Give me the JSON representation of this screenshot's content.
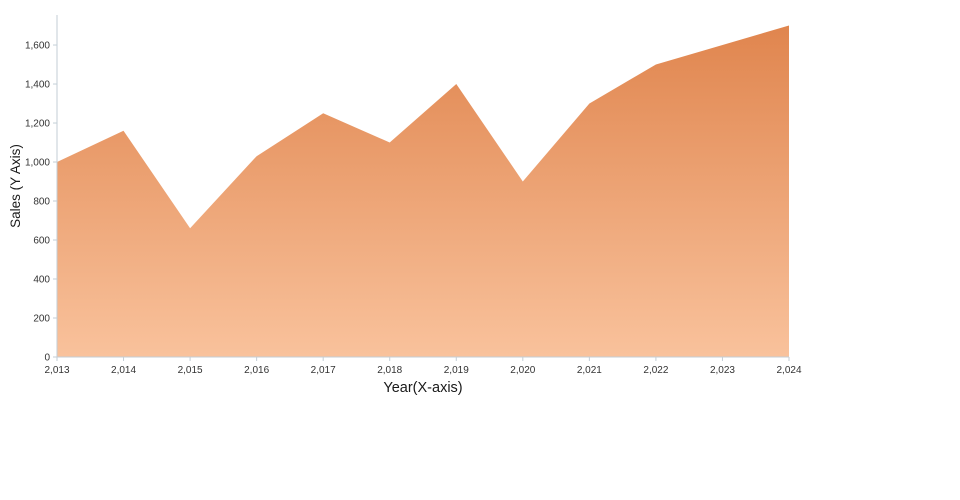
{
  "chart_data": {
    "type": "area",
    "title": "",
    "xlabel": "Year(X-axis)",
    "ylabel": "Sales (Y Axis)",
    "categories": [
      2013,
      2014,
      2015,
      2016,
      2017,
      2018,
      2019,
      2020,
      2021,
      2022,
      2023,
      2024
    ],
    "x_tick_labels": [
      "2,013",
      "2,014",
      "2,015",
      "2,016",
      "2,017",
      "2,018",
      "2,019",
      "2,020",
      "2,021",
      "2,022",
      "2,023",
      "2,024"
    ],
    "values": [
      1000,
      1160,
      660,
      1030,
      1250,
      1100,
      1400,
      900,
      1300,
      1500,
      1600,
      1700
    ],
    "ylim": [
      0,
      1754
    ],
    "y_ticks": [
      0,
      200,
      400,
      600,
      800,
      1000,
      1200,
      1400,
      1600
    ],
    "y_tick_labels": [
      "0",
      "200",
      "400",
      "600",
      "800",
      "1,000",
      "1,200",
      "1,400",
      "1,600"
    ],
    "grid": false,
    "legend": "none",
    "colors": {
      "area_gradient_top": "#e0854e",
      "area_gradient_bottom": "#f9c29c",
      "axis_line": "#c3ced6",
      "tick_text": "#333333",
      "axis_title": "#1a1a1a"
    }
  }
}
